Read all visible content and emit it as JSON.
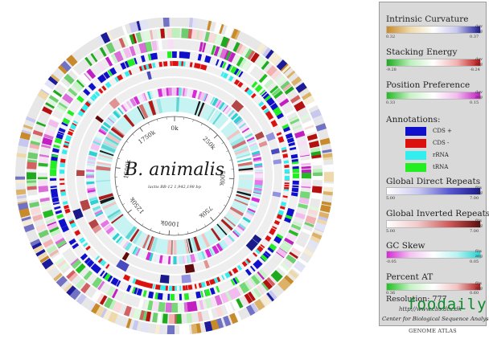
{
  "atlas": {
    "title": "B. animalis",
    "subtitle": "lactis BB-12  1,942,198 bp",
    "ticks": [
      "0k",
      "250k",
      "500k",
      "750k",
      "1000k",
      "1250k",
      "1500k",
      "1750k"
    ]
  },
  "legend": {
    "intrinsic_curvature": {
      "title": "Intrinsic Curvature",
      "min": "0.32",
      "max": "0.37",
      "dev": "dev",
      "avg": "avg",
      "gradient": [
        "#c98a2a",
        "#efd9a8",
        "#ffffff",
        "#c7c7ef",
        "#1c1c9a"
      ]
    },
    "stacking_energy": {
      "title": "Stacking Energy",
      "min": "-9.28",
      "max": "-8.24",
      "dev": "dev",
      "avg": "avg",
      "gradient": [
        "#1eaa1e",
        "#bdf0bd",
        "#ffffff",
        "#f2b2b2",
        "#b51010"
      ]
    },
    "position_preference": {
      "title": "Position Preference",
      "min": "0.33",
      "max": "0.15",
      "dev": "dev",
      "avg": "avg",
      "gradient": [
        "#22bb22",
        "#c8f2c8",
        "#ffffff",
        "#f3bcef",
        "#c21ec2"
      ]
    },
    "annotations": {
      "title": "Annotations:",
      "items": [
        {
          "label": "CDS +",
          "color": "#1010cc"
        },
        {
          "label": "CDS -",
          "color": "#dd1010"
        },
        {
          "label": "rRNA",
          "color": "#33eeee"
        },
        {
          "label": "tRNA",
          "color": "#22ee22"
        }
      ]
    },
    "global_direct_repeats": {
      "title": "Global Direct Repeats",
      "min": "5.00",
      "max": "7.00",
      "dev": "fits",
      "avg": "avg",
      "gradient": [
        "#ffffff",
        "#c9c9f2",
        "#5a5ad0",
        "#1a1a8a"
      ]
    },
    "global_inverted_repeats": {
      "title": "Global Inverted Repeats",
      "min": "5.00",
      "max": "7.00",
      "dev": "fits",
      "avg": "avg",
      "gradient": [
        "#ffffff",
        "#f2c9c9",
        "#d05a5a",
        "#600a0a"
      ]
    },
    "gc_skew": {
      "title": "GC Skew",
      "min": "-0.05",
      "max": "0.05",
      "dev": "fits",
      "avg": "avg",
      "gradient": [
        "#d62ad6",
        "#f3c3f3",
        "#ffffff",
        "#b8f3f3",
        "#2ad2d2"
      ]
    },
    "percent_at": {
      "title": "Percent AT",
      "min": "0.36",
      "max": "0.60",
      "dev": "fits",
      "avg": "avg",
      "gradient": [
        "#1ec21e",
        "#c4f3c4",
        "#ffffff",
        "#f3c3c3",
        "#b01a1a"
      ]
    },
    "resolution": "Resolution: 777",
    "url": "http://www.cbs.dtu.dk",
    "org": "Center for Biological Sequence Analysis"
  },
  "footer": "GENOME ATLAS",
  "watermark": "foodaily"
}
